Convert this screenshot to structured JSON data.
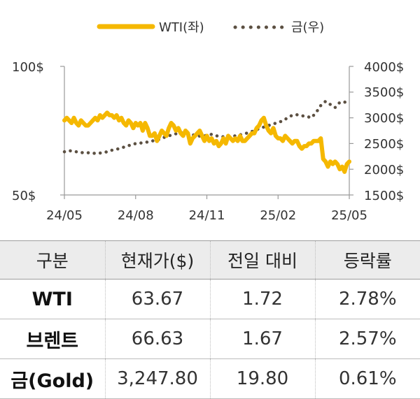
{
  "chart_data": {
    "type": "line",
    "legend": {
      "placement": "top",
      "items": [
        "WTI(좌)",
        "금(우)"
      ]
    },
    "x_ticks": [
      "24/05",
      "24/08",
      "24/11",
      "25/02",
      "25/05"
    ],
    "y_left": {
      "ticks": [
        "100$",
        "50$"
      ],
      "range": [
        50,
        100
      ]
    },
    "y_right": {
      "ticks": [
        "4000$",
        "3500$",
        "3000$",
        "2500$",
        "2000$",
        "1500$"
      ],
      "range": [
        1500,
        4000
      ]
    },
    "grid": false,
    "colors": {
      "wti": "#f5b800",
      "gold": "#5c5042"
    },
    "series": [
      {
        "name": "WTI(좌)",
        "axis": "left",
        "style": "solid",
        "x": [
          0.0,
          0.1,
          0.2,
          0.3,
          0.4,
          0.5,
          0.6,
          0.7,
          0.8,
          0.9,
          1.0,
          1.1,
          1.2,
          1.3,
          1.4,
          1.5,
          1.6,
          1.7,
          1.8,
          1.9,
          2.0,
          2.1,
          2.2,
          2.3,
          2.4,
          2.5,
          2.6,
          2.7,
          2.8,
          2.9,
          3.0,
          3.1,
          3.2,
          3.3,
          3.4,
          3.5,
          3.6,
          3.7,
          3.8,
          3.9,
          4.0,
          4.1,
          4.2,
          4.3,
          4.4,
          4.5,
          4.6,
          4.7,
          4.8,
          4.9,
          5.0,
          5.1,
          5.2,
          5.3,
          5.4,
          5.5,
          5.6,
          5.7,
          5.8,
          5.9,
          6.0,
          6.1,
          6.2,
          6.3,
          6.4,
          6.5,
          6.6,
          6.7,
          6.8,
          6.9,
          7.0,
          7.1,
          7.2,
          7.3,
          7.4,
          7.5,
          7.6,
          7.7,
          7.8,
          7.9,
          8.0,
          8.1,
          8.2,
          8.3,
          8.4,
          8.5,
          8.6,
          8.7,
          8.8,
          8.9,
          9.0,
          9.1,
          9.2,
          9.3,
          9.4,
          9.5,
          9.6,
          9.7,
          9.8,
          9.9,
          10.0,
          10.1,
          10.2,
          10.3,
          10.4,
          10.5,
          10.6,
          10.7,
          10.8,
          10.9,
          11.0,
          11.1,
          11.2,
          11.3,
          11.4,
          11.5,
          11.6,
          11.7,
          11.8,
          11.9,
          12.0
        ],
        "values": [
          79,
          80,
          79,
          78,
          80,
          78,
          77,
          79,
          78,
          77,
          77,
          78,
          79,
          80,
          79,
          81,
          80,
          81,
          82,
          81,
          81,
          80,
          81,
          79,
          80,
          78,
          77,
          79,
          78,
          76,
          78,
          77,
          78,
          75,
          78,
          76,
          73,
          73,
          74,
          71,
          73,
          75,
          74,
          73,
          76,
          78,
          77,
          75,
          76,
          74,
          73,
          75,
          74,
          70,
          72,
          73,
          74,
          75,
          73,
          71,
          73,
          71,
          72,
          70,
          71,
          69,
          70,
          72,
          70,
          73,
          72,
          71,
          72,
          71,
          73,
          71,
          71,
          72,
          73,
          74,
          74,
          76,
          77,
          79,
          80,
          77,
          75,
          74,
          76,
          73,
          72,
          72,
          71,
          73,
          72,
          71,
          70,
          71,
          71,
          69,
          68,
          69,
          69,
          70,
          70,
          71,
          71,
          71,
          72,
          64,
          63,
          61,
          63,
          62,
          63,
          62,
          60,
          61,
          59,
          62,
          63
        ]
      },
      {
        "name": "금(우)",
        "axis": "right",
        "style": "dotted",
        "x": [
          0.0,
          0.2,
          0.4,
          0.6,
          0.8,
          1.0,
          1.2,
          1.4,
          1.6,
          1.8,
          2.0,
          2.2,
          2.4,
          2.6,
          2.8,
          3.0,
          3.2,
          3.4,
          3.6,
          3.8,
          4.0,
          4.2,
          4.4,
          4.6,
          4.8,
          5.0,
          5.2,
          5.4,
          5.6,
          5.8,
          6.0,
          6.2,
          6.4,
          6.6,
          6.8,
          7.0,
          7.2,
          7.4,
          7.6,
          7.8,
          8.0,
          8.2,
          8.4,
          8.6,
          8.8,
          9.0,
          9.2,
          9.4,
          9.6,
          9.8,
          10.0,
          10.2,
          10.4,
          10.6,
          10.8,
          11.0,
          11.2,
          11.4,
          11.6,
          11.8,
          12.0
        ],
        "values": [
          2340,
          2360,
          2350,
          2330,
          2320,
          2320,
          2310,
          2310,
          2320,
          2340,
          2370,
          2390,
          2410,
          2450,
          2470,
          2500,
          2510,
          2520,
          2540,
          2560,
          2580,
          2620,
          2650,
          2680,
          2700,
          2710,
          2690,
          2670,
          2650,
          2640,
          2660,
          2680,
          2650,
          2640,
          2620,
          2640,
          2650,
          2670,
          2690,
          2720,
          2750,
          2790,
          2820,
          2850,
          2880,
          2910,
          2940,
          3000,
          3050,
          3060,
          3040,
          3030,
          3000,
          3100,
          3240,
          3320,
          3260,
          3200,
          3300,
          3310,
          3240
        ]
      }
    ]
  },
  "table": {
    "headers": [
      "구분",
      "현재가($)",
      "전일 대비",
      "등락률"
    ],
    "rows": [
      [
        "WTI",
        "63.67",
        "1.72",
        "2.78%"
      ],
      [
        "브렌트",
        "66.63",
        "1.67",
        "2.57%"
      ],
      [
        "금(Gold)",
        "3,247.80",
        "19.80",
        "0.61%"
      ]
    ]
  }
}
